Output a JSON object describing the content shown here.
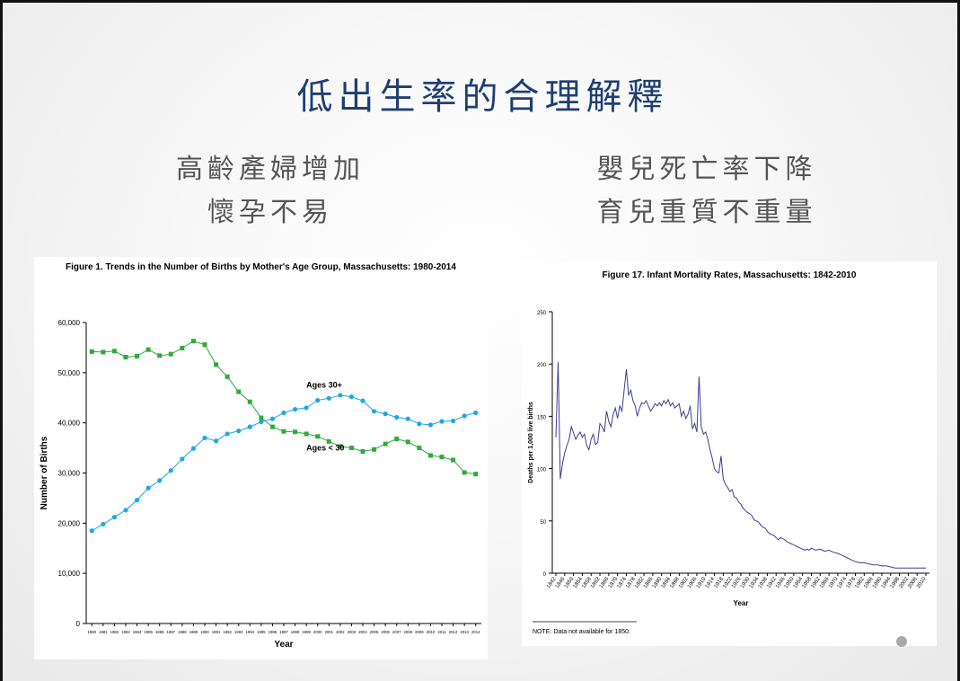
{
  "slide": {
    "title": "低出生率的合理解釋",
    "left_points": [
      "高齡產婦增加",
      "懷孕不易"
    ],
    "right_points": [
      "嬰兒死亡率下降",
      "育兒重質不重量"
    ]
  },
  "chart_data": [
    {
      "type": "line",
      "title": "Figure 1.  Trends in the Number of Births by Mother's Age Group, Massachusetts: 1980-2014",
      "xlabel": "Year",
      "ylabel": "Number of Births",
      "ylim": [
        0,
        60000
      ],
      "yticks": [
        0,
        10000,
        20000,
        30000,
        40000,
        50000,
        60000
      ],
      "ytick_labels": [
        "0",
        "10,000",
        "20,000",
        "30,000",
        "40,000",
        "50,000",
        "60,000"
      ],
      "grid": false,
      "legend": "labels on lines",
      "x": [
        "1980",
        "1981",
        "1982",
        "1983",
        "1984",
        "1985",
        "1986",
        "1987",
        "1988",
        "1989",
        "1990",
        "1991",
        "1992",
        "1993",
        "1994",
        "1995",
        "1996",
        "1997",
        "1998",
        "1999",
        "2000",
        "2001",
        "2002",
        "2003",
        "2004",
        "2005",
        "2006",
        "2007",
        "2008",
        "2009",
        "2010",
        "2011",
        "2012",
        "2013",
        "2014"
      ],
      "series": [
        {
          "name": "Ages 30+",
          "color": "#1ea8e0",
          "values": [
            18500,
            19800,
            21200,
            22600,
            24600,
            27000,
            28500,
            30500,
            32800,
            34900,
            37000,
            36400,
            37800,
            38400,
            39200,
            40200,
            40800,
            42000,
            42700,
            43000,
            44500,
            44900,
            45500,
            45200,
            44400,
            42300,
            41800,
            41100,
            40800,
            39800,
            39600,
            40300,
            40400,
            41400,
            42000
          ]
        },
        {
          "name": "Ages < 30",
          "color": "#2eaa3c",
          "values": [
            54200,
            54100,
            54300,
            53100,
            53300,
            54600,
            53400,
            53700,
            54900,
            56300,
            55600,
            51600,
            49200,
            46200,
            44200,
            41000,
            39200,
            38300,
            38200,
            37800,
            37300,
            36300,
            35300,
            35000,
            34300,
            34700,
            35800,
            36800,
            36200,
            35000,
            33500,
            33200,
            32600,
            30100,
            29800
          ]
        }
      ]
    },
    {
      "type": "line",
      "title": "Figure 17.  Infant Mortality Rates, Massachusetts: 1842-2010",
      "xlabel": "Year",
      "ylabel": "Deaths per 1,000 live births",
      "ylim": [
        0,
        250
      ],
      "yticks": [
        0,
        50,
        100,
        150,
        200,
        250
      ],
      "xlim": [
        1842,
        2010
      ],
      "x_tick_labels": [
        "1842",
        "1846",
        "1850",
        "1854",
        "1858",
        "1862",
        "1866",
        "1870",
        "1874",
        "1878",
        "1882",
        "1886",
        "1890",
        "1894",
        "1898",
        "1902",
        "1906",
        "1910",
        "1914",
        "1918",
        "1922",
        "1926",
        "1930",
        "1934",
        "1938",
        "1942",
        "1946",
        "1950",
        "1954",
        "1958",
        "1962",
        "1966",
        "1970",
        "1974",
        "1978",
        "1982",
        "1986",
        "1990",
        "1994",
        "1998",
        "2002",
        "2006",
        "2010"
      ],
      "grid": false,
      "note": "NOTE:  Data not available for 1850.",
      "series": [
        {
          "name": "",
          "color": "#3b3f8f",
          "points": [
            [
              1842,
              130
            ],
            [
              1843,
              202
            ],
            [
              1844,
              90
            ],
            [
              1845,
              105
            ],
            [
              1846,
              115
            ],
            [
              1847,
              122
            ],
            [
              1848,
              128
            ],
            [
              1849,
              140
            ],
            [
              1851,
              128
            ],
            [
              1852,
              132
            ],
            [
              1853,
              135
            ],
            [
              1854,
              130
            ],
            [
              1855,
              133
            ],
            [
              1856,
              122
            ],
            [
              1857,
              118
            ],
            [
              1858,
              128
            ],
            [
              1859,
              133
            ],
            [
              1860,
              123
            ],
            [
              1861,
              125
            ],
            [
              1862,
              143
            ],
            [
              1863,
              140
            ],
            [
              1864,
              135
            ],
            [
              1865,
              155
            ],
            [
              1866,
              145
            ],
            [
              1867,
              140
            ],
            [
              1868,
              152
            ],
            [
              1869,
              158
            ],
            [
              1870,
              148
            ],
            [
              1871,
              160
            ],
            [
              1872,
              155
            ],
            [
              1873,
              175
            ],
            [
              1874,
              195
            ],
            [
              1875,
              170
            ],
            [
              1876,
              175
            ],
            [
              1877,
              165
            ],
            [
              1878,
              160
            ],
            [
              1879,
              150
            ],
            [
              1880,
              158
            ],
            [
              1881,
              163
            ],
            [
              1882,
              162
            ],
            [
              1883,
              165
            ],
            [
              1884,
              160
            ],
            [
              1885,
              155
            ],
            [
              1886,
              158
            ],
            [
              1887,
              162
            ],
            [
              1888,
              160
            ],
            [
              1889,
              163
            ],
            [
              1890,
              160
            ],
            [
              1891,
              165
            ],
            [
              1892,
              162
            ],
            [
              1893,
              166
            ],
            [
              1894,
              160
            ],
            [
              1895,
              163
            ],
            [
              1896,
              158
            ],
            [
              1897,
              160
            ],
            [
              1898,
              162
            ],
            [
              1899,
              150
            ],
            [
              1900,
              155
            ],
            [
              1901,
              148
            ],
            [
              1902,
              152
            ],
            [
              1903,
              160
            ],
            [
              1904,
              138
            ],
            [
              1905,
              143
            ],
            [
              1906,
              135
            ],
            [
              1907,
              188
            ],
            [
              1908,
              140
            ],
            [
              1909,
              133
            ],
            [
              1910,
              135
            ],
            [
              1911,
              128
            ],
            [
              1912,
              118
            ],
            [
              1913,
              110
            ],
            [
              1914,
              100
            ],
            [
              1915,
              97
            ],
            [
              1916,
              96
            ],
            [
              1917,
              112
            ],
            [
              1918,
              90
            ],
            [
              1919,
              85
            ],
            [
              1920,
              82
            ],
            [
              1921,
              78
            ],
            [
              1922,
              80
            ],
            [
              1923,
              73
            ],
            [
              1924,
              72
            ],
            [
              1925,
              68
            ],
            [
              1926,
              66
            ],
            [
              1927,
              62
            ],
            [
              1928,
              60
            ],
            [
              1929,
              58
            ],
            [
              1930,
              57
            ],
            [
              1931,
              55
            ],
            [
              1932,
              51
            ],
            [
              1933,
              50
            ],
            [
              1934,
              49
            ],
            [
              1935,
              46
            ],
            [
              1936,
              44
            ],
            [
              1937,
              43
            ],
            [
              1938,
              40
            ],
            [
              1939,
              38
            ],
            [
              1940,
              37
            ],
            [
              1941,
              36
            ],
            [
              1942,
              34
            ],
            [
              1943,
              32
            ],
            [
              1944,
              34
            ],
            [
              1945,
              33
            ],
            [
              1946,
              32
            ],
            [
              1947,
              30
            ],
            [
              1948,
              29
            ],
            [
              1949,
              28
            ],
            [
              1950,
              27
            ],
            [
              1951,
              26
            ],
            [
              1952,
              25
            ],
            [
              1953,
              24
            ],
            [
              1954,
              23
            ],
            [
              1955,
              22
            ],
            [
              1956,
              23
            ],
            [
              1957,
              22
            ],
            [
              1958,
              24
            ],
            [
              1959,
              23
            ],
            [
              1960,
              22
            ],
            [
              1962,
              23
            ],
            [
              1964,
              21
            ],
            [
              1966,
              22
            ],
            [
              1968,
              20
            ],
            [
              1970,
              19
            ],
            [
              1972,
              17
            ],
            [
              1974,
              15
            ],
            [
              1976,
              13
            ],
            [
              1978,
              11
            ],
            [
              1980,
              10
            ],
            [
              1982,
              10
            ],
            [
              1984,
              9
            ],
            [
              1986,
              8
            ],
            [
              1988,
              8
            ],
            [
              1990,
              7
            ],
            [
              1992,
              7
            ],
            [
              1994,
              6
            ],
            [
              1996,
              5
            ],
            [
              1998,
              5
            ],
            [
              2000,
              5
            ],
            [
              2002,
              5
            ],
            [
              2004,
              5
            ],
            [
              2006,
              5
            ],
            [
              2008,
              5
            ],
            [
              2010,
              5
            ]
          ]
        }
      ]
    }
  ]
}
